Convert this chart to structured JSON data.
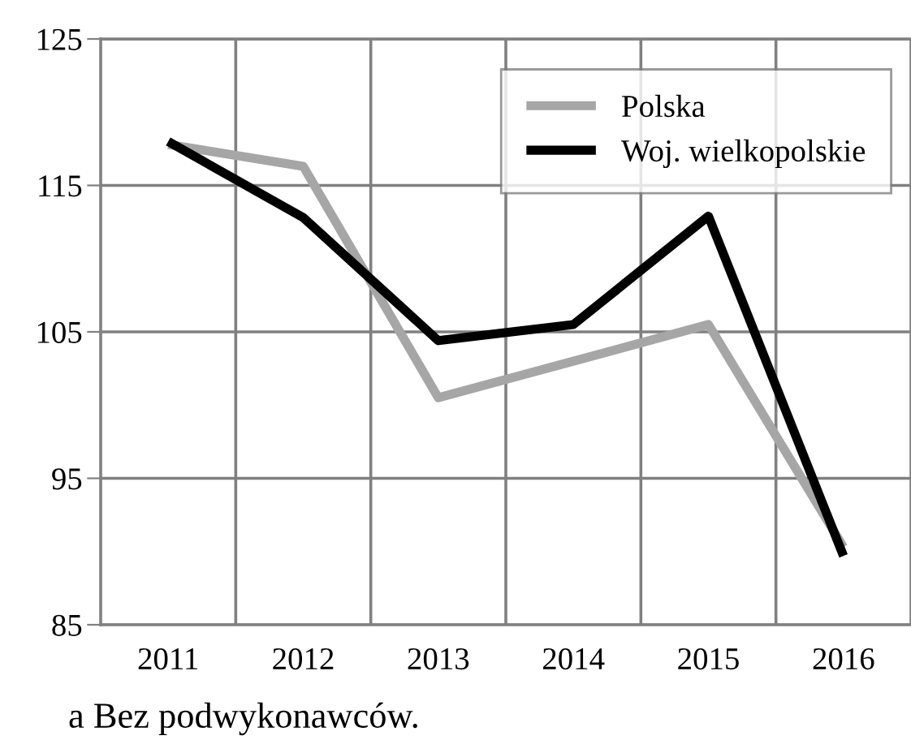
{
  "chart_data": {
    "type": "line",
    "categories": [
      "2011",
      "2012",
      "2013",
      "2014",
      "2015",
      "2016"
    ],
    "series": [
      {
        "name": "Polska",
        "color": "#a6a6a6",
        "values": [
          117.8,
          116.3,
          100.5,
          103.0,
          105.5,
          90.3
        ]
      },
      {
        "name": "Woj. wielkopolskie",
        "color": "#000000",
        "values": [
          118.0,
          112.8,
          104.4,
          105.5,
          112.9,
          89.7
        ]
      }
    ],
    "ylim": [
      85,
      125
    ],
    "yticks": [
      85,
      95,
      105,
      115,
      125
    ],
    "grid": true,
    "legend": "top right",
    "marker": "none",
    "line_style": "solid",
    "annotations": [
      "a Bez podwykonawców."
    ]
  }
}
